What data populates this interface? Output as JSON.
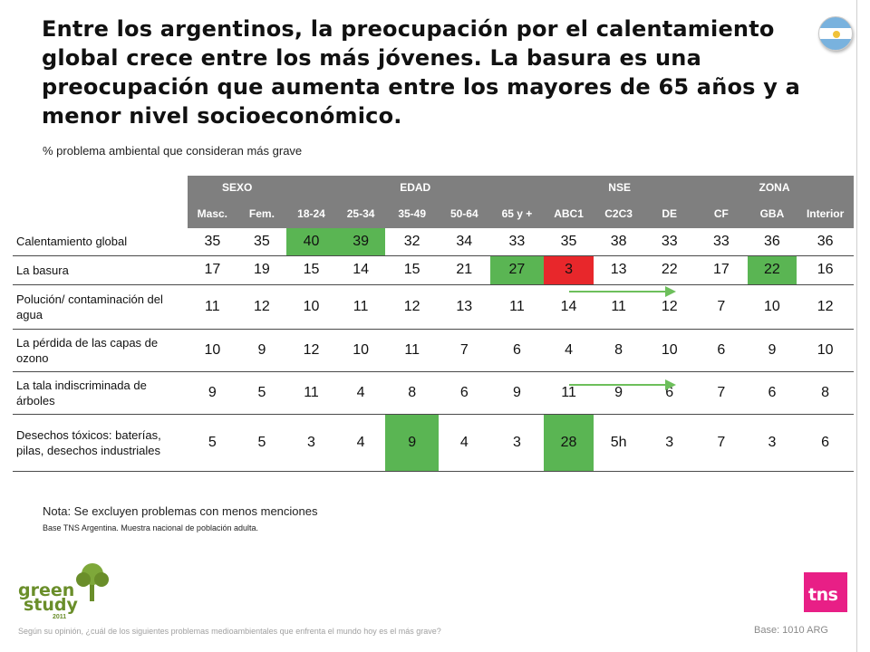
{
  "slide": {
    "title": "Entre los argentinos, la preocupación por el calentamiento global crece entre los más jóvenes. La basura es una preocupación que aumenta entre los mayores de 65 años y a menor nivel socioeconómico.",
    "subtitle": "% problema ambiental que consideran más grave",
    "note": "Nota: Se excluyen problemas con menos menciones",
    "base_note": "Base TNS Argentina. Muestra nacional de población adulta.",
    "question": "Según su opinión, ¿cuál de los siguientes problemas medioambientales que enfrenta el mundo hoy es el más grave?",
    "base_count": "Base: 1010 ARG",
    "logo_green_line1": "green",
    "logo_green_line2": "study",
    "logo_green_year": "2011",
    "logo_tns": "tns",
    "flag_icon": "argentina-flag-icon"
  },
  "table": {
    "groups": [
      "SEXO",
      "EDAD",
      "NSE",
      "ZONA"
    ],
    "columns": [
      "Masc.",
      "Fem.",
      "18-24",
      "25-34",
      "35-49",
      "50-64",
      "65 y +",
      "ABC1",
      "C2C3",
      "DE",
      "CF",
      "GBA",
      "Interior"
    ],
    "rows": [
      {
        "label": "Calentamiento global",
        "values": [
          "35",
          "35",
          "40",
          "39",
          "32",
          "34",
          "33",
          "35",
          "38",
          "33",
          "33",
          "36",
          "36"
        ]
      },
      {
        "label": "La basura",
        "values": [
          "17",
          "19",
          "15",
          "14",
          "15",
          "21",
          "27",
          "3",
          "13",
          "22",
          "17",
          "22",
          "16"
        ]
      },
      {
        "label": "Polución/ contaminación del agua",
        "values": [
          "11",
          "12",
          "10",
          "11",
          "12",
          "13",
          "11",
          "14",
          "11",
          "12",
          "7",
          "10",
          "12"
        ]
      },
      {
        "label": "La pérdida de las capas de ozono",
        "values": [
          "10",
          "9",
          "12",
          "10",
          "11",
          "7",
          "6",
          "4",
          "8",
          "10",
          "6",
          "9",
          "10"
        ]
      },
      {
        "label": "La tala indiscriminada de árboles",
        "values": [
          "9",
          "5",
          "11",
          "4",
          "8",
          "6",
          "9",
          "11",
          "9",
          "6",
          "7",
          "6",
          "8"
        ]
      },
      {
        "label": "Desechos tóxicos: baterías, pilas, desechos industriales",
        "values": [
          "5",
          "5",
          "3",
          "4",
          "9",
          "4",
          "3",
          "28",
          "5h",
          "3",
          "7",
          "3",
          "6"
        ]
      }
    ],
    "highlight_colors": {
      "green": "#5ab553",
      "red": "#e8272b",
      "header": "#7f7f7f"
    }
  }
}
